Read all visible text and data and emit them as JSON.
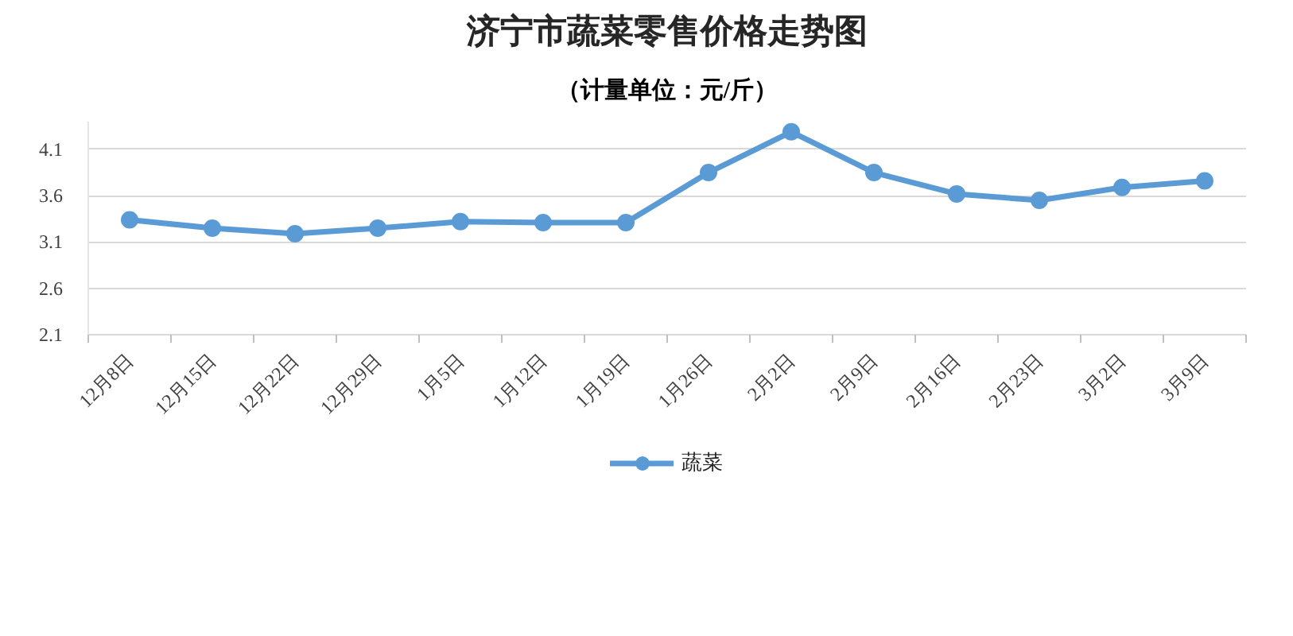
{
  "chart_data": {
    "type": "line",
    "title": "济宁市蔬菜零售价格走势图",
    "subtitle": "（计量单位：元/斤）",
    "categories": [
      "12月8日",
      "12月15日",
      "12月22日",
      "12月29日",
      "1月5日",
      "1月12日",
      "1月19日",
      "1月26日",
      "2月2日",
      "2月9日",
      "2月16日",
      "2月23日",
      "3月2日",
      "3月9日"
    ],
    "series": [
      {
        "name": "蔬菜",
        "color": "#5b9bd5",
        "values": [
          3.34,
          3.25,
          3.19,
          3.25,
          3.32,
          3.31,
          3.31,
          3.85,
          4.29,
          3.85,
          3.62,
          3.55,
          3.69,
          3.76
        ]
      }
    ],
    "ylim": [
      2.1,
      4.4
    ],
    "yticks": [
      2.1,
      2.6,
      3.1,
      3.6,
      4.1
    ],
    "grid": "y",
    "legend": "bottom",
    "marker": "circle",
    "line_style": "solid"
  }
}
